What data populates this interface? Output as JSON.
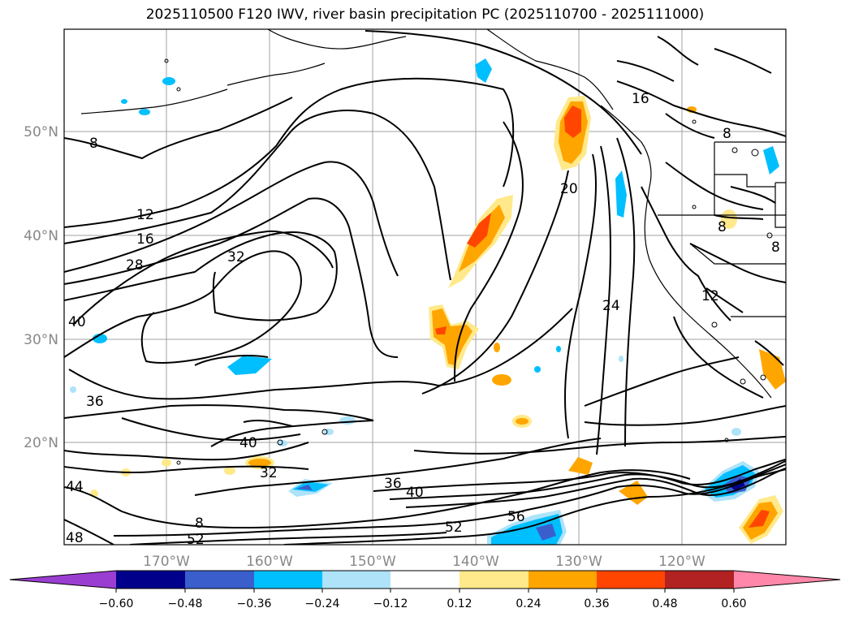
{
  "title": "2025110500 F120 IWV, river basin precipitation PC (2025110700 - 2025111000)",
  "lat_labels": [
    "50°N",
    "40°N",
    "30°N",
    "20°N"
  ],
  "lon_labels": [
    "170°W",
    "160°W",
    "150°W",
    "140°W",
    "130°W",
    "120°W"
  ],
  "contour_labels": [
    "8",
    "12",
    "16",
    "28",
    "32",
    "40",
    "36",
    "44",
    "48",
    "52",
    "40",
    "32",
    "36",
    "40",
    "52",
    "56",
    "20",
    "24",
    "16",
    "8",
    "8",
    "8",
    "12",
    "8"
  ],
  "colorbar": {
    "ticks": [
      "−0.60",
      "−0.48",
      "−0.36",
      "−0.24",
      "−0.12",
      "0.12",
      "0.24",
      "0.36",
      "0.48",
      "0.60"
    ],
    "colors": {
      "lt_neg060": "#9a3ed1",
      "neg060_048": "#00008b",
      "neg048_036": "#3a5fcd",
      "neg036_024": "#00bfff",
      "neg024_012": "#aee3fa",
      "neg012_012": "#ffffff",
      "p012_024": "#ffe98a",
      "p024_036": "#ffa500",
      "p036_048": "#ff4500",
      "p048_060": "#b22222",
      "gt_060": "#ff88aa"
    }
  }
}
